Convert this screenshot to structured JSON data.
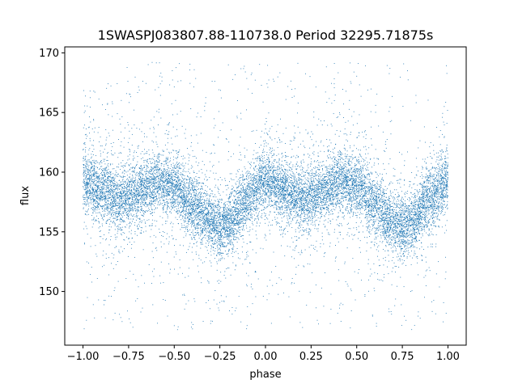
{
  "chart_data": {
    "type": "scatter",
    "title": "1SWASPJ083807.88-110738.0 Period 32295.71875s",
    "xlabel": "phase",
    "ylabel": "flux",
    "xlim": [
      -1.1,
      1.1
    ],
    "ylim": [
      145.5,
      170.5
    ],
    "x_ticks": [
      -1.0,
      -0.75,
      -0.5,
      -0.25,
      0.0,
      0.25,
      0.5,
      0.75,
      1.0
    ],
    "x_tick_labels": [
      "−1.00",
      "−0.75",
      "−0.50",
      "−0.25",
      "0.00",
      "0.25",
      "0.50",
      "0.75",
      "1.00"
    ],
    "y_ticks": [
      150,
      155,
      160,
      165,
      170
    ],
    "y_tick_labels": [
      "150",
      "155",
      "160",
      "165",
      "170"
    ],
    "grid": false,
    "marker_color": "#1f77b4",
    "series": [
      {
        "phase_range": [
          -1.0,
          1.0
        ],
        "approx_point_count": 14000,
        "mean_flux_curve": {
          "phase": [
            -1.0,
            -0.9,
            -0.8,
            -0.7,
            -0.6,
            -0.5,
            -0.4,
            -0.3,
            -0.25,
            -0.2,
            -0.1,
            0.0,
            0.1,
            0.2,
            0.3,
            0.4,
            0.5,
            0.6,
            0.7,
            0.75,
            0.8,
            0.9,
            1.0
          ],
          "flux": [
            159.3,
            158.5,
            157.7,
            158.3,
            159.1,
            158.9,
            157.2,
            155.8,
            155.4,
            155.8,
            157.8,
            159.3,
            158.5,
            157.7,
            158.3,
            159.1,
            158.9,
            157.2,
            155.8,
            155.4,
            155.8,
            157.8,
            159.3
          ]
        },
        "typical_scatter": 1.2,
        "outlier_flux_range": [
          146.8,
          169.2
        ]
      }
    ]
  }
}
